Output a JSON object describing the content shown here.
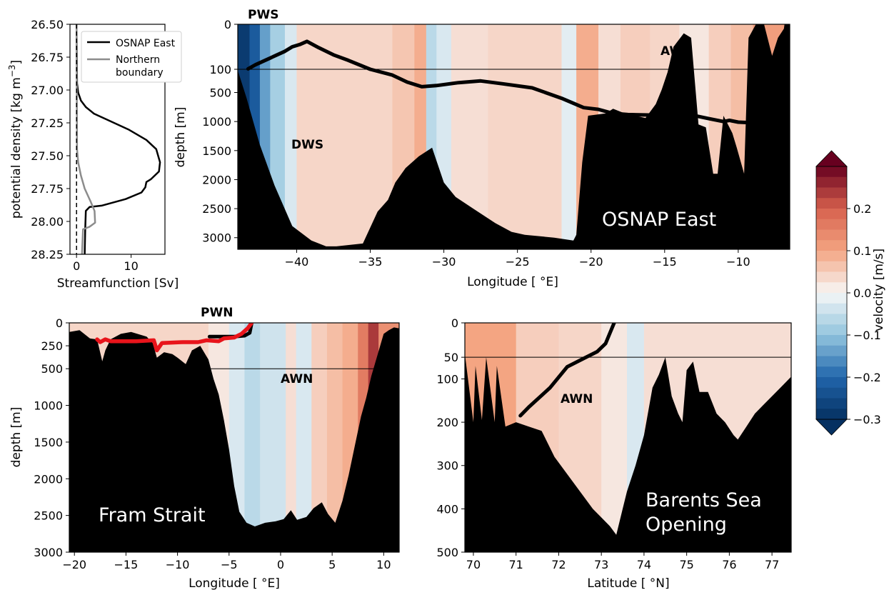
{
  "colors": {
    "positive": "#c6554f",
    "negative": "#2166ac",
    "bathymetry": "#000000",
    "streamfunction_osnap": "#000000",
    "streamfunction_northern": "#8c8c8c",
    "boundary_red": "#e8141b"
  },
  "chart_data": [
    {
      "id": "streamfunction",
      "type": "line",
      "xlabel": "Streamfunction [Sv]",
      "ylabel": "potential density [kg m",
      "ylabel_sup": "−3",
      "ylabel_end": "]",
      "xlim": [
        -1.2,
        16.2
      ],
      "ylim": [
        26.5,
        28.25
      ],
      "xticks": [
        "0",
        "10"
      ],
      "yticks": [
        "26.50",
        "26.75",
        "27.00",
        "27.25",
        "27.50",
        "27.75",
        "28.00",
        "28.25"
      ],
      "legend": {
        "placement": "top-right",
        "entries": [
          "OSNAP East",
          "Northern",
          "boundary"
        ]
      },
      "series": [
        {
          "name": "OSNAP East",
          "color": "#000000",
          "x": [
            0,
            0.1,
            0.3,
            0.8,
            1.7,
            3.2,
            5.8,
            9.5,
            12.8,
            14.6,
            15.3,
            15.1,
            13.6,
            12.8,
            12.6,
            11.9,
            9.0,
            4.6,
            2.4,
            1.7,
            1.6,
            1.5
          ],
          "y": [
            26.5,
            26.95,
            27.02,
            27.08,
            27.13,
            27.18,
            27.23,
            27.3,
            27.38,
            27.45,
            27.55,
            27.62,
            27.68,
            27.7,
            27.74,
            27.78,
            27.83,
            27.88,
            27.89,
            27.92,
            28.05,
            28.25
          ]
        },
        {
          "name": "Northern boundary",
          "color": "#8c8c8c",
          "x": [
            0,
            0.1,
            0.3,
            0.8,
            1.5,
            2.6,
            3.3,
            3.4,
            2.4,
            1.2,
            1.1,
            1.0
          ],
          "y": [
            26.5,
            27.45,
            27.55,
            27.65,
            27.75,
            27.85,
            27.92,
            28.01,
            28.04,
            28.06,
            28.15,
            28.25
          ]
        },
        {
          "name": "zero",
          "color": "#000000",
          "dashed": true,
          "x": [
            0,
            0
          ],
          "y": [
            26.5,
            28.25
          ]
        }
      ]
    },
    {
      "id": "osnap",
      "type": "heatmap",
      "xlabel": "Longitude [$^\\circ$E]",
      "xlabel_text": "Longitude [ °E]",
      "ylabel": "depth [m]",
      "xlim": [
        -44,
        -6.5
      ],
      "xticks": [
        -40,
        -35,
        -30,
        -25,
        -20,
        -15,
        -10
      ],
      "yticks": [
        "0",
        "100",
        "500",
        "1000",
        "1500",
        "2000",
        "2500",
        "3000"
      ],
      "y_upper": {
        "range": [
          0,
          100
        ],
        "frac": 0.2
      },
      "y_lower": {
        "range": [
          100,
          3200
        ]
      },
      "bottom_depth": {
        "x": [
          -44,
          -43.4,
          -42.5,
          -41.5,
          -40.3,
          -39.0,
          -38.0,
          -37.3,
          -35.5,
          -34.5,
          -33.8,
          -33.3,
          -32.6,
          -31.7,
          -30.8,
          -30.0,
          -29.2,
          -28.0,
          -26.5,
          -25.4,
          -24.5,
          -22.5,
          -21.2,
          -21.0,
          -20.6,
          -20.2,
          -19.0,
          -18.5,
          -17.8,
          -17.0,
          -16.3,
          -15.6,
          -15.2,
          -14.8,
          -14.4,
          -13.7,
          -13.2,
          -12.7,
          -12.2,
          -11.7,
          -11.4,
          -11.0,
          -10.6,
          -10.4,
          -10.1,
          -9.6,
          -9.3,
          -8.8,
          -8.4,
          -7.7,
          -7.3,
          -6.9,
          -6.6,
          -6.5
        ],
        "depth": [
          120,
          600,
          1400,
          2100,
          2800,
          3050,
          3150,
          3150,
          3100,
          2550,
          2350,
          2050,
          1800,
          1600,
          1450,
          2050,
          2300,
          2500,
          2750,
          2900,
          2950,
          3000,
          3050,
          2950,
          1700,
          900,
          860,
          780,
          850,
          900,
          940,
          700,
          450,
          150,
          50,
          20,
          30,
          1050,
          1100,
          1900,
          1900,
          900,
          1100,
          1200,
          1450,
          1900,
          30,
          0,
          -20,
          70,
          30,
          10,
          -60,
          -80
        ]
      },
      "contour": {
        "x": [
          -43.3,
          -42.8,
          -41.8,
          -40.8,
          -40.3,
          -39.8,
          -39.3,
          -38.5,
          -37.5,
          -36.5,
          -35.0,
          -33.5,
          -32.5,
          -31.5,
          -30.5,
          -29.0,
          -27.5,
          -26.0,
          -24.0,
          -22.0,
          -20.5,
          -19.5,
          -18.5,
          -17.5,
          -15.5,
          -13.5,
          -12.0,
          -11.0,
          -10.6,
          -10.0,
          -9.2
        ],
        "depth": [
          99,
          90,
          75,
          60,
          50,
          45,
          38,
          52,
          68,
          80,
          100,
          200,
          320,
          400,
          380,
          330,
          300,
          350,
          420,
          600,
          760,
          790,
          860,
          880,
          890,
          870,
          950,
          1000,
          980,
          1010,
          1020
        ]
      },
      "bands": [
        {
          "x0": -44,
          "x1": -43.2,
          "v": -0.28
        },
        {
          "x0": -43.2,
          "x1": -42.5,
          "v": -0.22
        },
        {
          "x0": -42.5,
          "x1": -41.8,
          "v": -0.14
        },
        {
          "x0": -41.8,
          "x1": -40.8,
          "v": -0.08
        },
        {
          "x0": -40.8,
          "x1": -40.0,
          "v": -0.03
        },
        {
          "x0": -40.0,
          "x1": -33.5,
          "v": 0.04
        },
        {
          "x0": -33.5,
          "x1": -32.0,
          "v": 0.06
        },
        {
          "x0": -32.0,
          "x1": -31.2,
          "v": 0.09
        },
        {
          "x0": -31.2,
          "x1": -30.5,
          "v": -0.06
        },
        {
          "x0": -30.5,
          "x1": -29.5,
          "v": -0.03
        },
        {
          "x0": -29.5,
          "x1": -27.0,
          "v": 0.03
        },
        {
          "x0": -27.0,
          "x1": -22.0,
          "v": 0.04
        },
        {
          "x0": -22.0,
          "x1": -21.0,
          "v": -0.02
        },
        {
          "x0": -21.0,
          "x1": -19.5,
          "v": 0.09
        },
        {
          "x0": -19.5,
          "x1": -18.0,
          "v": 0.03
        },
        {
          "x0": -18.0,
          "x1": -16.0,
          "v": 0.05
        },
        {
          "x0": -16.0,
          "x1": -14.0,
          "v": 0.04
        },
        {
          "x0": -14.0,
          "x1": -12.0,
          "v": 0.02
        },
        {
          "x0": -12.0,
          "x1": -10.5,
          "v": 0.05
        },
        {
          "x0": -10.5,
          "x1": -9.0,
          "v": 0.07
        },
        {
          "x0": -9.0,
          "x1": -6.5,
          "v": 0.11
        }
      ],
      "water_mass_labels": [
        {
          "text": "PWS"
        },
        {
          "text": "AWS"
        },
        {
          "text": "DWS"
        }
      ],
      "section_label": "OSNAP East"
    },
    {
      "id": "fram",
      "type": "heatmap",
      "xlabel": "Longitude [$^\\circ$E]",
      "xlabel_text": "Longitude [ °E]",
      "ylabel": "depth [m]",
      "xlim": [
        -20.5,
        11.5
      ],
      "xticks": [
        -20,
        -15,
        -10,
        -5,
        0,
        5,
        10
      ],
      "yticks": [
        "0",
        "250",
        "500",
        "1000",
        "1500",
        "2000",
        "2500",
        "3000"
      ],
      "y_upper": {
        "range": [
          0,
          500
        ],
        "frac": 0.2
      },
      "y_lower": {
        "range": [
          500,
          3000
        ]
      },
      "bottom_depth": {
        "x": [
          -20.5,
          -19.5,
          -18.5,
          -17.8,
          -17.3,
          -17.0,
          -16.5,
          -15.5,
          -14.5,
          -13.0,
          -12.4,
          -12.0,
          -11.3,
          -10.5,
          -10.0,
          -9.2,
          -8.6,
          -7.8,
          -7.0,
          -6.5,
          -6.0,
          -5.5,
          -5.0,
          -4.5,
          -4.0,
          -3.3,
          -2.5,
          -1.5,
          -0.5,
          0.3,
          1.0,
          1.6,
          2.5,
          3.2,
          4.0,
          4.6,
          5.3,
          6.0,
          6.6,
          7.2,
          7.8,
          8.3,
          8.8,
          9.4,
          10.0,
          10.5,
          11.0,
          11.5
        ],
        "depth": [
          100,
          80,
          170,
          180,
          420,
          300,
          180,
          120,
          100,
          150,
          220,
          380,
          320,
          340,
          380,
          450,
          300,
          250,
          400,
          640,
          850,
          1200,
          1600,
          2100,
          2450,
          2600,
          2650,
          2600,
          2580,
          2550,
          2430,
          2560,
          2520,
          2400,
          2320,
          2480,
          2600,
          2300,
          1950,
          1550,
          1150,
          900,
          600,
          350,
          120,
          80,
          50,
          60
        ]
      },
      "red_line": {
        "x": [
          -17.8,
          -17.5,
          -17.0,
          -16.5,
          -14.0,
          -12.3,
          -12.0,
          -11.5,
          -9.5,
          -8.0,
          -7.2,
          -6.0,
          -5.5,
          -4.5,
          -3.8,
          -3.2,
          -2.8
        ],
        "depth": [
          180,
          210,
          180,
          200,
          200,
          190,
          300,
          220,
          210,
          210,
          190,
          200,
          170,
          160,
          120,
          60,
          0
        ]
      },
      "black_line": {
        "x": [
          -6.9,
          -4.5,
          -3.5,
          -3.0,
          -2.8
        ],
        "depth": [
          150,
          150,
          140,
          110,
          0
        ]
      },
      "bands": [
        {
          "x0": -20.5,
          "x1": -7.0,
          "v": 0.04
        },
        {
          "x0": -7.0,
          "x1": -5.0,
          "v": 0.02
        },
        {
          "x0": -5.0,
          "x1": -3.5,
          "v": -0.03
        },
        {
          "x0": -3.5,
          "x1": -2.0,
          "v": -0.06
        },
        {
          "x0": -2.0,
          "x1": 0.5,
          "v": -0.04
        },
        {
          "x0": 0.5,
          "x1": 1.5,
          "v": 0.03
        },
        {
          "x0": 1.5,
          "x1": 3.0,
          "v": -0.03
        },
        {
          "x0": 3.0,
          "x1": 4.5,
          "v": 0.05
        },
        {
          "x0": 4.5,
          "x1": 6.0,
          "v": 0.07
        },
        {
          "x0": 6.0,
          "x1": 7.5,
          "v": 0.09
        },
        {
          "x0": 7.5,
          "x1": 8.5,
          "v": 0.16
        },
        {
          "x0": 8.5,
          "x1": 9.5,
          "v": 0.24
        },
        {
          "x0": 9.5,
          "x1": 11.5,
          "v": 0.13
        }
      ],
      "water_mass_labels": [
        {
          "text": "PWN"
        },
        {
          "text": "AWN"
        }
      ],
      "section_label": "Fram Strait"
    },
    {
      "id": "barents",
      "type": "heatmap",
      "xlabel": "Latitude [$^\\circ$N]",
      "xlabel_text": "Latitude [ °N]",
      "ylabel": "",
      "xlim": [
        69.8,
        77.45
      ],
      "xticks": [
        70,
        71,
        72,
        73,
        74,
        75,
        76,
        77
      ],
      "yticks": [
        "0",
        "50",
        "100",
        "200",
        "300",
        "400",
        "500"
      ],
      "y_upper": {
        "range": [
          0,
          50
        ],
        "frac": 0.15
      },
      "y_lower": {
        "range": [
          50,
          500
        ]
      },
      "bottom_depth": {
        "x": [
          69.8,
          70.0,
          70.05,
          70.2,
          70.3,
          70.5,
          70.55,
          70.75,
          71.0,
          71.3,
          71.6,
          71.9,
          72.2,
          72.5,
          72.8,
          73.0,
          73.2,
          73.35,
          73.5,
          73.6,
          73.8,
          74.0,
          74.2,
          74.35,
          74.5,
          74.65,
          74.8,
          74.9,
          75.0,
          75.15,
          75.3,
          75.5,
          75.7,
          75.9,
          76.1,
          76.2,
          76.4,
          76.6,
          76.8,
          77.0,
          77.2,
          77.45
        ],
        "depth": [
          45,
          200,
          70,
          195,
          50,
          200,
          70,
          210,
          200,
          210,
          220,
          280,
          320,
          360,
          400,
          420,
          440,
          460,
          400,
          360,
          300,
          230,
          120,
          90,
          50,
          140,
          180,
          200,
          80,
          60,
          130,
          130,
          180,
          200,
          230,
          240,
          210,
          180,
          160,
          140,
          120,
          95
        ]
      },
      "contour": {
        "x": [
          71.1,
          71.3,
          71.8,
          72.2,
          72.6,
          72.9,
          73.1,
          73.2,
          73.3
        ],
        "depth": [
          185,
          165,
          120,
          72,
          52,
          42,
          30,
          15,
          0
        ]
      },
      "bands": [
        {
          "x0": 69.8,
          "x1": 71.0,
          "v": 0.1
        },
        {
          "x0": 71.0,
          "x1": 72.0,
          "v": 0.05
        },
        {
          "x0": 72.0,
          "x1": 73.0,
          "v": 0.04
        },
        {
          "x0": 73.0,
          "x1": 73.6,
          "v": 0.02
        },
        {
          "x0": 73.6,
          "x1": 74.0,
          "v": -0.03
        },
        {
          "x0": 74.0,
          "x1": 77.45,
          "v": 0.03
        }
      ],
      "water_mass_labels": [
        {
          "text": "AWN"
        }
      ],
      "section_label": [
        "Barents Sea",
        "Opening"
      ]
    },
    {
      "id": "colorbar",
      "type": "heatmap",
      "label": "velocity [m/s]",
      "vlim": [
        -0.3,
        0.3
      ],
      "ticks": [
        0.2,
        0.1,
        0.0,
        -0.1,
        -0.2,
        -0.3
      ],
      "tick_labels": [
        "0.2",
        "0.1",
        "0.0",
        "−0.1",
        "−0.2",
        "−0.3"
      ],
      "levels": 24,
      "extend": "both"
    }
  ]
}
